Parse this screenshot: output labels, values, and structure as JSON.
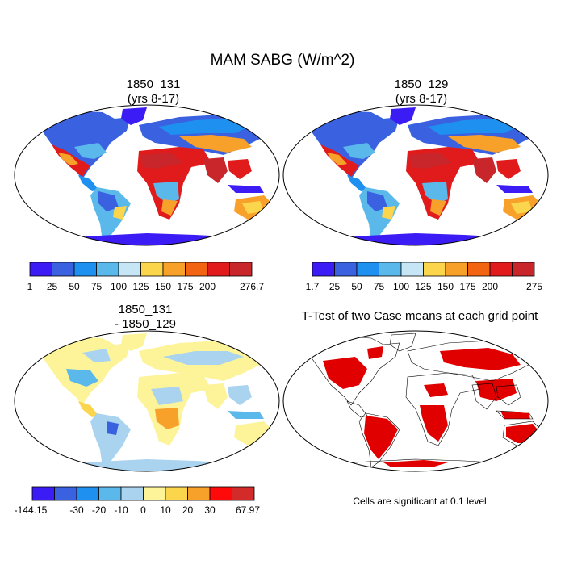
{
  "title": "MAM SABG (W/m^2)",
  "panels": [
    {
      "title_line1": "1850_131",
      "title_line2": "(yrs 8-17)"
    },
    {
      "title_line1": "1850_129",
      "title_line2": "(yrs 8-17)"
    },
    {
      "title_line1": "1850_131",
      "title_line2": "- 1850_129"
    },
    {
      "title_line1": "T-Test of two Case means at each grid point",
      "title_line2": ""
    }
  ],
  "colorbars": [
    {
      "labels": [
        "1",
        "25",
        "50",
        "75",
        "100",
        "125",
        "150",
        "175",
        "200",
        "276.7"
      ],
      "colors": [
        "#3b1cf5",
        "#3a62e0",
        "#1e90f0",
        "#5bb8ea",
        "#c7e6f5",
        "#fbd54c",
        "#f8a12a",
        "#f26411",
        "#e11b1b",
        "#c8262b"
      ]
    },
    {
      "labels": [
        "1.7",
        "25",
        "50",
        "75",
        "100",
        "125",
        "150",
        "175",
        "200",
        "275"
      ],
      "colors": [
        "#3b1cf5",
        "#3a62e0",
        "#1e90f0",
        "#5bb8ea",
        "#c7e6f5",
        "#fbd54c",
        "#f8a12a",
        "#f26411",
        "#e11b1b",
        "#c8262b"
      ]
    },
    {
      "labels": [
        "-144.15",
        "-30",
        "-20",
        "-10",
        "0",
        "10",
        "20",
        "30",
        "67.97"
      ],
      "colors": [
        "#3b1cf5",
        "#3a62e0",
        "#1e90f0",
        "#5bb8ea",
        "#a9d3ef",
        "#fdf49a",
        "#fbd54c",
        "#f8a12a",
        "#ff0a0a",
        "#d32a2a"
      ]
    }
  ],
  "note": "Cells are significant at 0.1 level",
  "map_colors": {
    "ocean": "#ffffff",
    "sig": "#e00000"
  }
}
